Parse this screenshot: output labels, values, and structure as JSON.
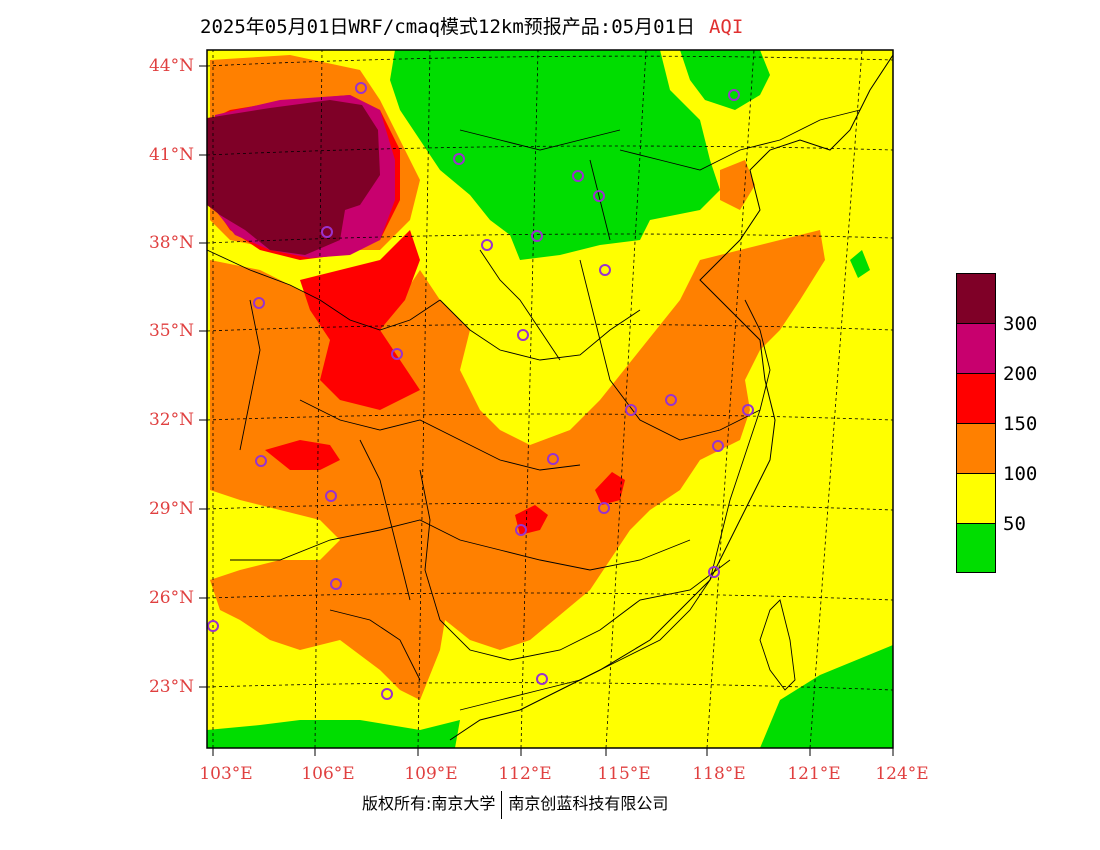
{
  "title": "2025年05月01日WRF/cmaq模式12km预报产品:05月01日",
  "title_tag": "AQI",
  "lat_labels": [
    "44°N",
    "41°N",
    "38°N",
    "35°N",
    "32°N",
    "29°N",
    "26°N",
    "23°N"
  ],
  "lon_labels": [
    "103°E",
    "106°E",
    "109°E",
    "112°E",
    "115°E",
    "118°E",
    "121°E",
    "124°E"
  ],
  "legend": {
    "colors": [
      "#7f0027",
      "#c8006e",
      "#ff0000",
      "#ff8000",
      "#ffff00",
      "#00dd00"
    ],
    "labels": [
      "300",
      "200",
      "150",
      "100",
      "50"
    ]
  },
  "footer": {
    "left": "版权所有:南京大学",
    "right": "南京创蓝科技有限公司"
  },
  "colors": {
    "good": "#00dd00",
    "moderate": "#ffff00",
    "usg": "#ff8000",
    "unhealthy": "#ff0000",
    "very_unhealthy": "#c8006e",
    "hazardous": "#7f0027",
    "station_marker": "#9933cc",
    "axis_label": "#e04040"
  },
  "stations": 28
}
